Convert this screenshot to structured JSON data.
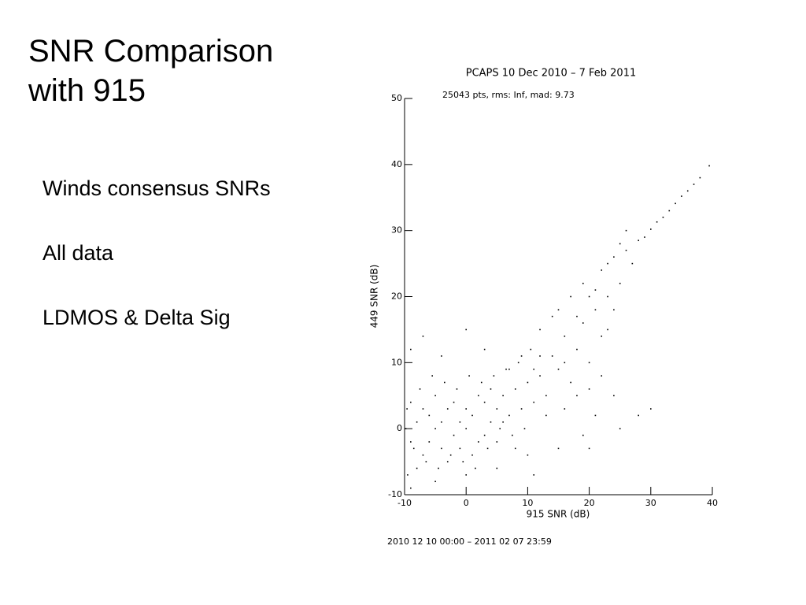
{
  "slide": {
    "title": [
      "SNR Comparison",
      "with 915"
    ],
    "bullets": [
      "Winds consensus SNRs",
      "All data",
      "LDMOS & Delta Sig"
    ]
  },
  "chart_data": {
    "type": "scatter",
    "title": "PCAPS 10 Dec 2010 –  7 Feb 2011",
    "annotation": "25043 pts, rms: Inf, mad: 9.73",
    "x_label": "915 SNR (dB)",
    "y_label": "449 SNR (dB)",
    "footer": "2010 12 10 00:00 – 2011 02 07 23:59",
    "color": "#000000",
    "xlim": [
      -10,
      40
    ],
    "ylim": [
      -10,
      50
    ],
    "xticks": [
      -10,
      0,
      10,
      20,
      30,
      40
    ],
    "yticks": [
      -10,
      0,
      10,
      20,
      30,
      40,
      50
    ],
    "x": [
      -9,
      -8,
      -7,
      -6,
      -5,
      -4,
      -3,
      -2,
      -1,
      0,
      -9,
      -8,
      -7,
      -6,
      -5,
      -4,
      -3,
      -2,
      -1,
      0,
      1,
      2,
      3,
      4,
      5,
      1,
      2,
      3,
      4,
      5,
      -9.5,
      -9.8,
      -9.6,
      -8.5,
      -7.5,
      -6.5,
      -5.5,
      -4.5,
      -3.5,
      -2.5,
      -1.5,
      -0.5,
      0.5,
      1.5,
      2.5,
      3.5,
      4.5,
      5.5,
      6,
      7,
      6.5,
      7.5,
      8,
      9,
      8.5,
      9.5,
      10,
      11,
      10.5,
      12,
      -9,
      -7,
      -4,
      0,
      3,
      -9,
      -5,
      0,
      5,
      10,
      13,
      14,
      15,
      16,
      17,
      18,
      19,
      20,
      21,
      22,
      12,
      13,
      15,
      16,
      17,
      18,
      19,
      20,
      21,
      22,
      23,
      24,
      25,
      26,
      24,
      23,
      25,
      27,
      26,
      22,
      19,
      24,
      25,
      28,
      30,
      15,
      20,
      11,
      23,
      20,
      14,
      18,
      21,
      16,
      12,
      11,
      9,
      7,
      6,
      8,
      28,
      30,
      32,
      34,
      36,
      38,
      39.5,
      29,
      31,
      33,
      35,
      37
    ],
    "values": [
      -2,
      1,
      -4,
      2,
      0,
      -3,
      3,
      -1,
      1,
      0,
      4,
      -6,
      3,
      -2,
      5,
      1,
      -5,
      4,
      -3,
      3,
      2,
      -2,
      4,
      1,
      3,
      -4,
      5,
      -1,
      6,
      -2,
      -7,
      0,
      3,
      -3,
      6,
      -5,
      8,
      -6,
      7,
      -4,
      6,
      -5,
      8,
      -6,
      7,
      -3,
      8,
      0,
      5,
      2,
      9,
      -1,
      6,
      3,
      10,
      0,
      7,
      4,
      12,
      8,
      12,
      14,
      11,
      15,
      12,
      -9,
      -8,
      -7,
      -6,
      -4,
      5,
      11,
      9,
      14,
      7,
      12,
      16,
      10,
      18,
      14,
      15,
      2,
      18,
      3,
      20,
      5,
      22,
      6,
      2,
      24,
      20,
      26,
      22,
      27,
      18,
      25,
      28,
      25,
      30,
      8,
      -1,
      5,
      0,
      2,
      3,
      -3,
      -3,
      -7,
      15,
      20,
      17,
      17,
      21,
      10,
      11,
      9,
      11,
      9,
      1,
      -3,
      28.5,
      30.2,
      32,
      34.1,
      36,
      38,
      39.8,
      29,
      31.3,
      33,
      35.2,
      37
    ]
  }
}
